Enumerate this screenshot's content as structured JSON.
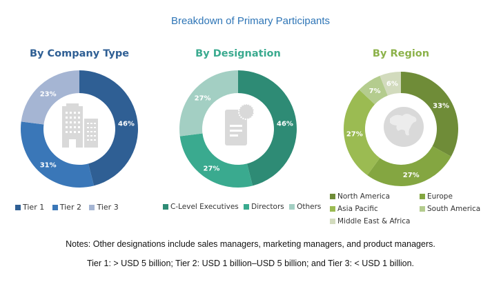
{
  "chart_data": {
    "title": "Breakdown of Primary Participants",
    "type": "pie",
    "charts": [
      {
        "id": "company",
        "title": "By Company Type",
        "title_color": "#2f5f94",
        "center_icon": "building-icon",
        "categories": [
          "Tier 1",
          "Tier 2",
          "Tier 3"
        ],
        "values": [
          46,
          31,
          23
        ],
        "labels": [
          "46%",
          "31%",
          "23%"
        ],
        "colors": [
          "#2f5f94",
          "#3a77b8",
          "#a5b5d3"
        ]
      },
      {
        "id": "designation",
        "title": "By Designation",
        "title_color": "#3aaa8f",
        "center_icon": "certificate-document-icon",
        "categories": [
          "C-Level Executives",
          "Directors",
          "Others"
        ],
        "values": [
          46,
          27,
          27
        ],
        "labels": [
          "46%",
          "27%",
          "27%"
        ],
        "colors": [
          "#2e8b75",
          "#3aaa8f",
          "#a3cfc3"
        ]
      },
      {
        "id": "region",
        "title": "By Region",
        "title_color": "#8cb24a",
        "center_icon": "globe-icon",
        "categories": [
          "North America",
          "Europe",
          "Asia Pacific",
          "South America",
          "Middle East & Africa"
        ],
        "values": [
          33,
          27,
          27,
          7,
          6
        ],
        "labels": [
          "33%",
          "27%",
          "27%",
          "7%",
          "6%"
        ],
        "colors": [
          "#6f8c38",
          "#84a641",
          "#9bbb52",
          "#b4cc8e",
          "#d2dbbd"
        ]
      }
    ]
  },
  "notes": {
    "line1": "Notes: Other designations include sales managers, marketing managers, and product managers.",
    "line2": "Tier 1: > USD 5 billion; Tier 2: USD 1 billion–USD 5 billion; and Tier 3: < USD 1 billion."
  }
}
